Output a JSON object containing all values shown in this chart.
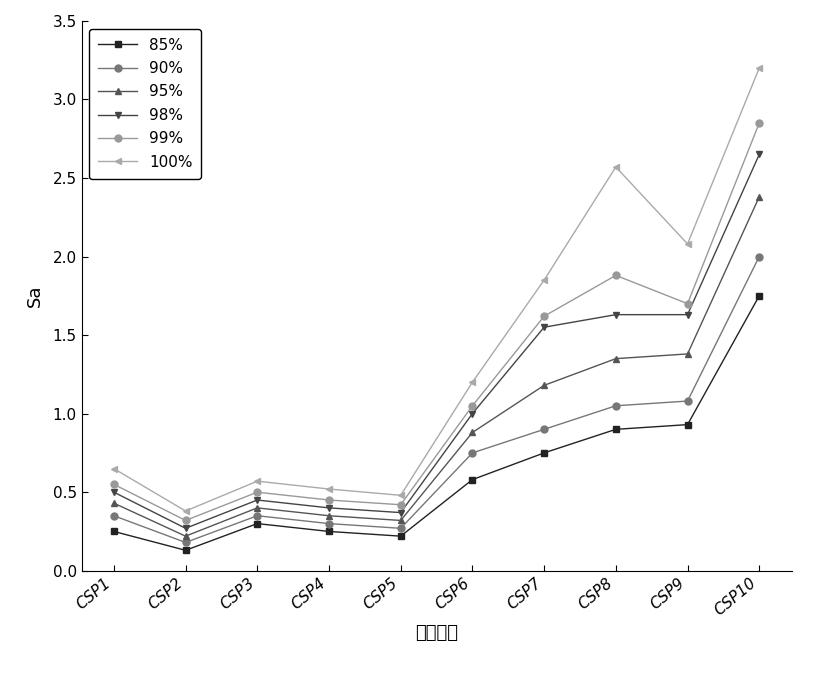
{
  "categories": [
    "CSP1",
    "CSP2",
    "CSP3",
    "CSP4",
    "CSP5",
    "CSP6",
    "CSP7",
    "CSP8",
    "CSP9",
    "CSP10"
  ],
  "series": [
    {
      "label": "85%",
      "color": "#222222",
      "marker": "s",
      "markersize": 5,
      "values": [
        0.25,
        0.13,
        0.3,
        0.25,
        0.22,
        0.58,
        0.75,
        0.9,
        0.93,
        1.75
      ]
    },
    {
      "label": "90%",
      "color": "#777777",
      "marker": "o",
      "markersize": 5,
      "values": [
        0.35,
        0.18,
        0.35,
        0.3,
        0.27,
        0.75,
        0.9,
        1.05,
        1.08,
        2.0
      ]
    },
    {
      "label": "95%",
      "color": "#555555",
      "marker": "^",
      "markersize": 5,
      "values": [
        0.43,
        0.22,
        0.4,
        0.35,
        0.32,
        0.88,
        1.18,
        1.35,
        1.38,
        2.38
      ]
    },
    {
      "label": "98%",
      "color": "#444444",
      "marker": "v",
      "markersize": 5,
      "values": [
        0.5,
        0.27,
        0.45,
        0.4,
        0.37,
        1.0,
        1.55,
        1.63,
        1.63,
        2.65
      ]
    },
    {
      "label": "99%",
      "color": "#999999",
      "marker": "o",
      "markersize": 5,
      "values": [
        0.55,
        0.32,
        0.5,
        0.45,
        0.42,
        1.05,
        1.62,
        1.88,
        1.7,
        2.85
      ]
    },
    {
      "label": "100%",
      "color": "#aaaaaa",
      "marker": "<",
      "markersize": 5,
      "values": [
        0.65,
        0.38,
        0.57,
        0.52,
        0.48,
        1.2,
        1.85,
        2.57,
        2.08,
        3.2
      ]
    }
  ],
  "xlabel": "试件编号",
  "ylabel": "Sa",
  "ylim": [
    0.0,
    3.5
  ],
  "yticks": [
    0.0,
    0.5,
    1.0,
    1.5,
    2.0,
    2.5,
    3.0,
    3.5
  ],
  "axis_fontsize": 13,
  "tick_fontsize": 11,
  "legend_fontsize": 11,
  "background_color": "#ffffff"
}
